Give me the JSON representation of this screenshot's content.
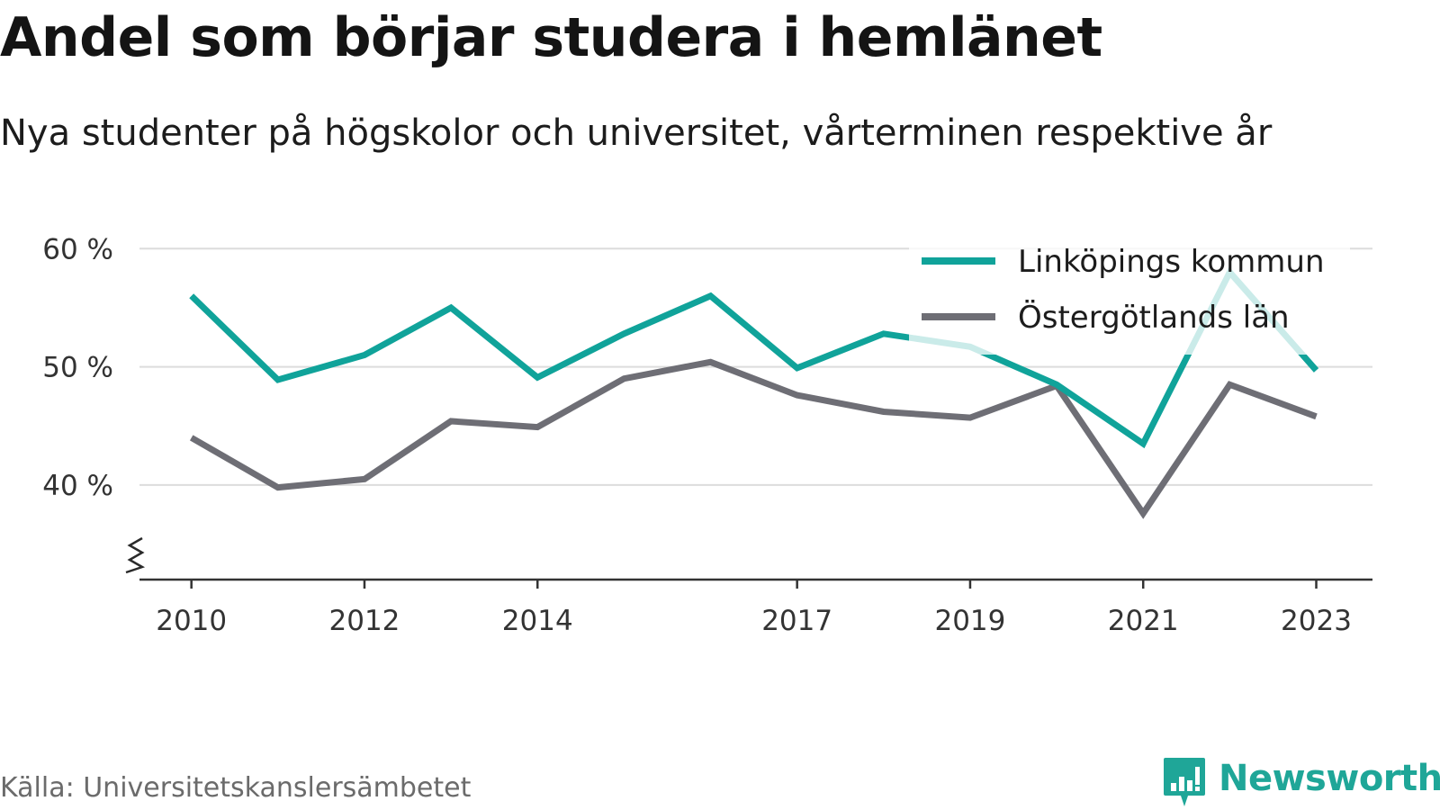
{
  "title": "Andel som börjar studera i hemlänet",
  "subtitle": "Nya studenter på högskolor och universitet, vårterminen respektive år",
  "source": "Källa: Universitetskanslersämbetet",
  "brand": {
    "name": "Newsworthy",
    "logo_icon": "newsworthy-bar-chart-logo",
    "color": "#1fa698"
  },
  "chart_data": {
    "type": "line",
    "x": [
      2010,
      2011,
      2012,
      2013,
      2014,
      2015,
      2016,
      2017,
      2018,
      2019,
      2020,
      2021,
      2022,
      2023
    ],
    "x_tick_labels": [
      "2010",
      "2012",
      "2014",
      "2017",
      "2019",
      "2021",
      "2023"
    ],
    "y_ticks": [
      40,
      50,
      60
    ],
    "y_tick_labels": [
      "40 %",
      "50 %",
      "60 %"
    ],
    "ylim": [
      32,
      62
    ],
    "xlim": [
      2009.4,
      2023.65
    ],
    "y_axis_broken": true,
    "grid": true,
    "legend_position": "top-right",
    "series": [
      {
        "name": "Linköpings kommun",
        "color": "#10a39a",
        "values": [
          56.0,
          48.9,
          51.0,
          55.0,
          49.1,
          52.8,
          56.0,
          49.9,
          52.8,
          51.7,
          48.5,
          43.5,
          58.0,
          49.7
        ]
      },
      {
        "name": "Östergötlands län",
        "color": "#6e6e75",
        "values": [
          44.0,
          39.8,
          40.5,
          45.4,
          44.9,
          49.0,
          50.4,
          47.6,
          46.2,
          45.7,
          48.4,
          37.6,
          48.5,
          45.8
        ]
      }
    ]
  }
}
